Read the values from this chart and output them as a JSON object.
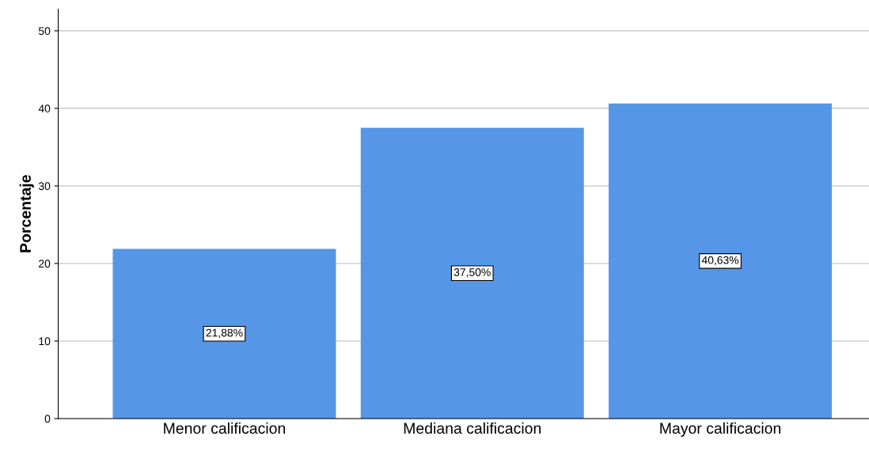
{
  "chart_data": {
    "type": "bar",
    "ylabel": "Porcentaje",
    "categories": [
      "Menor calificacion",
      "Mediana calificacion",
      "Mayor calificacion"
    ],
    "values": [
      21.88,
      37.5,
      40.63
    ],
    "color": "#5596e6",
    "value_labels": [
      "21,88%",
      "37,50%",
      "40,63%"
    ],
    "ylim": [
      0,
      52.8
    ],
    "yticks": [
      0,
      10,
      20,
      30,
      40,
      50
    ],
    "grid": "y",
    "legend": false
  }
}
